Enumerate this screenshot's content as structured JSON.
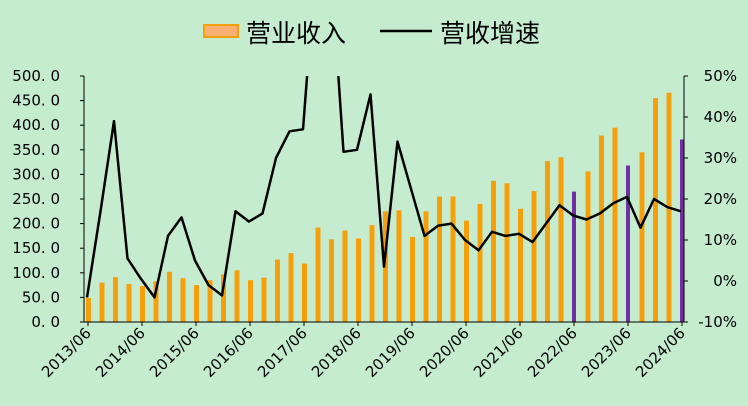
{
  "chart_data": {
    "type": "bar+line",
    "legend": {
      "position": "top",
      "bar_label": "营业收入",
      "line_label": "营收增速"
    },
    "colors": {
      "background": "#c6ecd0",
      "bar": "#f59f0b",
      "bar_highlight": "#7030a0",
      "bar_legend_fill": "#f8b073",
      "line": "#000000"
    },
    "x_tick_labels": [
      "2013/06",
      "2014/06",
      "2015/06",
      "2016/06",
      "2017/06",
      "2018/06",
      "2019/06",
      "2020/06",
      "2021/06",
      "2022/06",
      "2023/06",
      "2024/06"
    ],
    "y_left": {
      "min": 0,
      "max": 500,
      "step": 50,
      "tick_labels": [
        "0. 0",
        "50. 0",
        "100. 0",
        "150. 0",
        "200. 0",
        "250. 0",
        "300. 0",
        "350. 0",
        "400. 0",
        "450. 0",
        "500. 0"
      ]
    },
    "y_right": {
      "min": -10,
      "max": 50,
      "step": 10,
      "tick_labels": [
        "-10%",
        "0%",
        "10%",
        "20%",
        "30%",
        "40%",
        "50%"
      ]
    },
    "grid": false,
    "series": [
      {
        "name": "营业收入",
        "type": "bar",
        "axis": "left",
        "highlight_indices": [
          36,
          40,
          44
        ],
        "values": [
          49,
          80,
          91,
          77,
          73,
          83,
          102,
          89,
          75,
          85,
          97,
          105,
          85,
          90,
          127,
          140,
          119,
          192,
          168,
          186,
          170,
          197,
          225,
          227,
          173,
          225,
          255,
          255,
          206,
          240,
          287,
          282,
          230,
          266,
          327,
          335,
          265,
          306,
          379,
          395,
          318,
          345,
          455,
          466,
          371
        ]
      },
      {
        "name": "营收增速",
        "type": "line",
        "axis": "right",
        "values": [
          -4,
          17,
          39,
          5.5,
          0.5,
          -4,
          11,
          15.5,
          5,
          -1,
          -3.5,
          17,
          14.5,
          16.5,
          30,
          36.5,
          37,
          80,
          80,
          31.5,
          32,
          45.5,
          3.5,
          34,
          22.5,
          11,
          13.5,
          14,
          10,
          7.5,
          12,
          11,
          11.5,
          9.5,
          14,
          18.5,
          16,
          15,
          16.5,
          19,
          20.5,
          13,
          20,
          18,
          17
        ]
      }
    ]
  }
}
